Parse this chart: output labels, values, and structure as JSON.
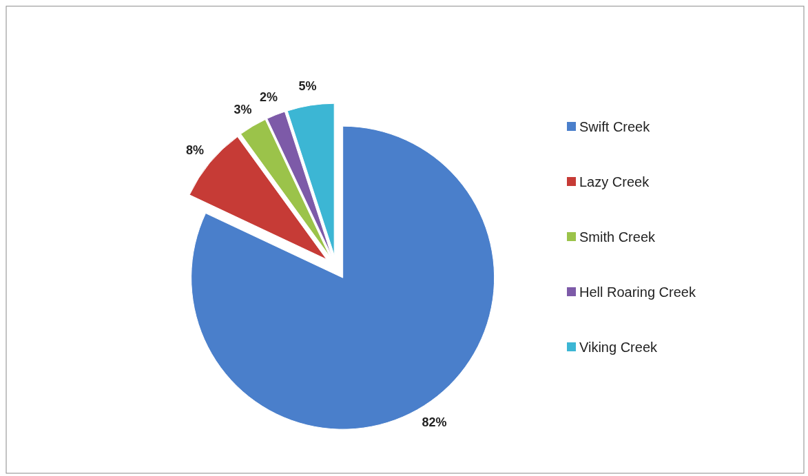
{
  "chart_data": {
    "type": "pie",
    "categories": [
      "Swift Creek",
      "Lazy Creek",
      "Smith Creek",
      "Hell Roaring Creek",
      "Viking Creek"
    ],
    "values": [
      82,
      8,
      3,
      2,
      5
    ],
    "colors": [
      "#4a7fcb",
      "#c63b36",
      "#9bc34a",
      "#7d5aa8",
      "#3cb6d4"
    ],
    "value_labels": [
      "82%",
      "8%",
      "3%",
      "2%",
      "5%"
    ],
    "legend": "right"
  }
}
